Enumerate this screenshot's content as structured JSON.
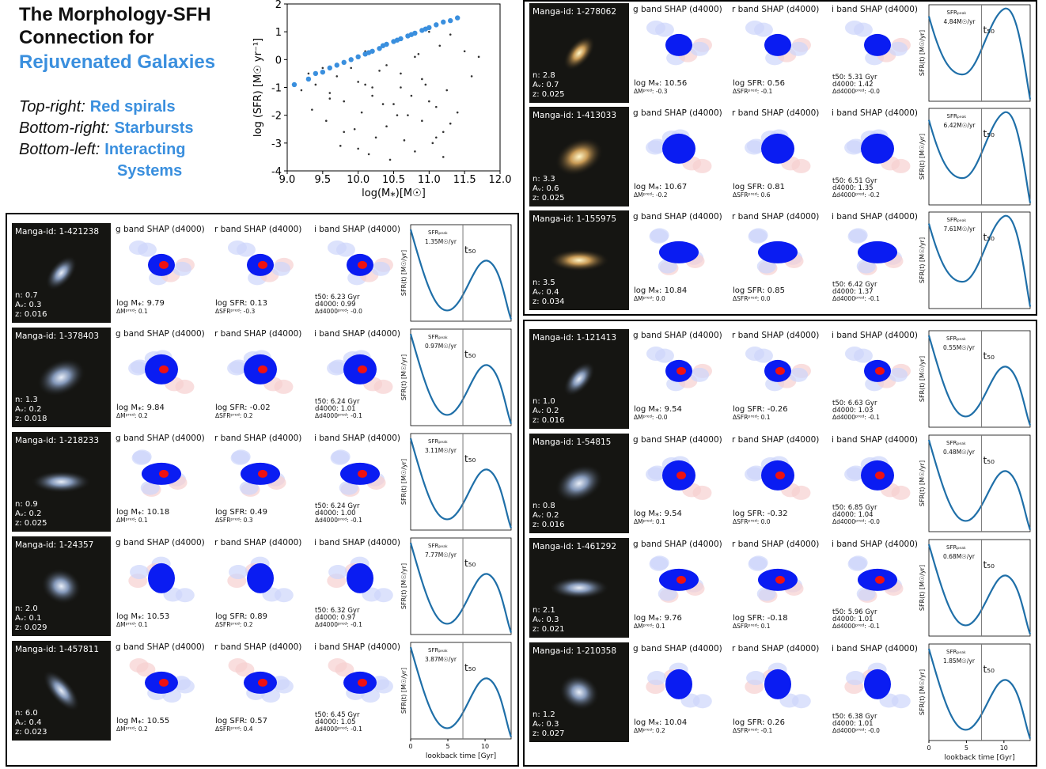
{
  "header": {
    "title": [
      "The Morphology-SFH",
      "Connection for"
    ],
    "subtitle": "Rejuvenated Galaxies",
    "legend": [
      {
        "prefix": "Top-right:",
        "label": [
          "Red spirals"
        ]
      },
      {
        "prefix": "Bottom-right:",
        "label": [
          "Starbursts"
        ]
      },
      {
        "prefix": "Bottom-left:",
        "label": [
          "Interacting",
          "Systems"
        ]
      }
    ]
  },
  "chart_data": {
    "type": "scatter",
    "xlabel": "log(M⁎)[M☉]",
    "ylabel": "log (SFR) [M☉ yr⁻¹]",
    "xlim": [
      9.0,
      12.0
    ],
    "xticks": [
      {
        "value": 9,
        "label": "9.0"
      },
      9.5,
      {
        "value": 10,
        "label": "10.0"
      },
      10.5,
      {
        "value": 11,
        "label": "11.0"
      },
      11.5,
      {
        "value": 12,
        "label": "12.0"
      }
    ],
    "ylim": [
      -4,
      2
    ],
    "yticks": [
      -4,
      -3,
      -2,
      -1,
      0,
      1,
      2
    ],
    "series": [
      {
        "color": "#333333",
        "x": [
          9.2,
          9.3,
          9.35,
          9.4,
          9.5,
          9.55,
          9.6,
          9.7,
          9.75,
          9.8,
          9.9,
          9.95,
          10.0,
          10.05,
          10.1,
          10.15,
          10.2,
          10.25,
          10.3,
          10.35,
          10.4,
          10.45,
          10.5,
          10.55,
          10.6,
          10.65,
          10.7,
          10.75,
          10.8,
          10.85,
          10.9,
          10.95,
          11.0,
          11.05,
          11.1,
          11.15,
          11.2,
          11.25,
          11.3,
          11.4,
          11.5,
          11.6,
          11.7,
          9.6,
          9.9,
          10.2,
          10.4,
          10.6,
          10.8,
          11.0,
          11.2,
          10.0,
          10.3,
          10.7,
          10.9,
          11.1,
          9.8,
          10.5,
          11.3,
          10.1
        ],
        "values": [
          -1.1,
          -0.5,
          -1.8,
          -0.9,
          -0.3,
          -2.2,
          -1.2,
          -0.6,
          -3.1,
          -1.5,
          0.0,
          -2.5,
          -0.8,
          -1.9,
          0.3,
          -3.4,
          -1.0,
          -2.8,
          0.4,
          -1.6,
          -0.2,
          -3.6,
          0.6,
          -2.0,
          -0.5,
          -2.9,
          0.8,
          -1.3,
          -3.3,
          0.2,
          -2.2,
          -0.9,
          1.0,
          -3.0,
          -1.7,
          0.5,
          -2.6,
          -1.1,
          0.9,
          -1.9,
          0.3,
          -0.6,
          0.1,
          -1.4,
          -0.3,
          -1.3,
          -2.4,
          -1.0,
          0.1,
          -1.5,
          -3.5,
          -3.2,
          -0.4,
          -2.0,
          -0.7,
          -2.8,
          -2.6,
          -1.6,
          -2.3,
          -0.9
        ]
      },
      {
        "color": "#3a8fde",
        "x": [
          9.1,
          9.3,
          9.4,
          9.5,
          9.6,
          9.7,
          9.8,
          9.9,
          10.0,
          10.1,
          10.15,
          10.2,
          10.3,
          10.35,
          10.4,
          10.5,
          10.55,
          10.6,
          10.7,
          10.75,
          10.8,
          10.9,
          10.95,
          11.0,
          11.1,
          11.2,
          11.3,
          11.4
        ],
        "values": [
          -0.9,
          -0.7,
          -0.5,
          -0.45,
          -0.3,
          -0.2,
          -0.1,
          0.0,
          0.1,
          0.2,
          0.25,
          0.3,
          0.4,
          0.5,
          0.55,
          0.65,
          0.7,
          0.75,
          0.85,
          0.9,
          0.95,
          1.05,
          1.1,
          1.15,
          1.25,
          1.35,
          1.4,
          1.5
        ]
      }
    ]
  },
  "columns": [
    "g band SHAP (d4000)",
    "r band SHAP (d4000)",
    "i band SHAP (d4000)"
  ],
  "peak_label": "SFRₚₑₐₖ",
  "t50_label": "t₅₀",
  "sfh_ylabel": "SFR(t) [M☉/yr]",
  "panels": [
    {
      "xlim": [
        0,
        13.5
      ],
      "xticks": [
        0,
        5,
        10
      ],
      "xlabel": "lookback time [Gyr]",
      "rows": [
        {
          "id": "Manga-id: 1-421238",
          "info": [
            "n: 0.7",
            "Aᵥ: 0.3",
            "z: 0.016"
          ],
          "mass": [
            "log M⁎: 9.79",
            "ΔMᵖʳᵉᵈ: 0.1"
          ],
          "sfr": [
            "log SFR: 0.13",
            "ΔSFRᵖʳᵉᵈ: -0.3"
          ],
          "age": [
            "t50: 6.23 Gyr",
            "d4000: 0.99",
            "Δd4000ᵖʳᵉᵈ: -0.0"
          ],
          "peak": "1.35M☉/yr"
        },
        {
          "id": "Manga-id: 1-378403",
          "info": [
            "n: 1.3",
            "Aᵥ: 0.2",
            "z: 0.018"
          ],
          "mass": [
            "log M⁎: 9.84",
            "ΔMᵖʳᵉᵈ: 0.2"
          ],
          "sfr": [
            "log SFR: -0.02",
            "ΔSFRᵖʳᵉᵈ: 0.2"
          ],
          "age": [
            "t50: 6.24 Gyr",
            "d4000: 1.01",
            "Δd4000ᵖʳᵉᵈ: -0.1"
          ],
          "peak": "0.97M☉/yr"
        },
        {
          "id": "Manga-id: 1-218233",
          "info": [
            "n: 0.9",
            "Aᵥ: 0.2",
            "z: 0.025"
          ],
          "mass": [
            "log M⁎: 10.18",
            "ΔMᵖʳᵉᵈ: 0.1"
          ],
          "sfr": [
            "log SFR: 0.49",
            "ΔSFRᵖʳᵉᵈ: 0.3"
          ],
          "age": [
            "t50: 6.24 Gyr",
            "d4000: 1.00",
            "Δd4000ᵖʳᵉᵈ: -0.1"
          ],
          "peak": "3.11M☉/yr"
        },
        {
          "id": "Manga-id: 1-24357",
          "info": [
            "n: 2.0",
            "Aᵥ: 0.1",
            "z: 0.029"
          ],
          "mass": [
            "log M⁎: 10.53",
            "ΔMᵖʳᵉᵈ: 0.1"
          ],
          "sfr": [
            "log SFR: 0.89",
            "ΔSFRᵖʳᵉᵈ: 0.2"
          ],
          "age": [
            "t50: 6.32 Gyr",
            "d4000: 0.97",
            "Δd4000ᵖʳᵉᵈ: -0.1"
          ],
          "peak": "7.77M☉/yr"
        },
        {
          "id": "Manga-id: 1-457811",
          "info": [
            "n: 6.0",
            "Aᵥ: 0.4",
            "z: 0.023"
          ],
          "mass": [
            "log M⁎: 10.55",
            "ΔMᵖʳᵉᵈ: 0.2"
          ],
          "sfr": [
            "log SFR: 0.57",
            "ΔSFRᵖʳᵉᵈ: 0.4"
          ],
          "age": [
            "t50: 6.45 Gyr",
            "d4000: 1.05",
            "Δd4000ᵖʳᵉᵈ: -0.1"
          ],
          "peak": "3.87M☉/yr"
        }
      ]
    },
    {
      "rows": [
        {
          "id": "Manga-id: 1-278062",
          "info": [
            "n: 2.8",
            "Aᵥ: 0.7",
            "z: 0.025"
          ],
          "mass": [
            "log M⁎: 10.56",
            "ΔMᵖʳᵉᵈ: -0.3"
          ],
          "sfr": [
            "log SFR: 0.56",
            "ΔSFRᵖʳᵉᵈ: -0.1"
          ],
          "age": [
            "t50: 5.31 Gyr",
            "d4000: 1.42",
            "Δd4000ᵖʳᵉᵈ: -0.0"
          ],
          "peak": "4.84M☉/yr"
        },
        {
          "id": "Manga-id: 1-413033",
          "info": [
            "n: 3.3",
            "Aᵥ: 0.6",
            "z: 0.025"
          ],
          "mass": [
            "log M⁎: 10.67",
            "ΔMᵖʳᵉᵈ: -0.2"
          ],
          "sfr": [
            "log SFR: 0.81",
            "ΔSFRᵖʳᵉᵈ: 0.6"
          ],
          "age": [
            "t50: 6.51 Gyr",
            "d4000: 1.35",
            "Δd4000ᵖʳᵉᵈ: -0.2"
          ],
          "peak": "6.42M☉/yr"
        },
        {
          "id": "Manga-id: 1-155975",
          "info": [
            "n: 3.5",
            "Aᵥ: 0.4",
            "z: 0.034"
          ],
          "mass": [
            "log M⁎: 10.84",
            "ΔMᵖʳᵉᵈ: 0.0"
          ],
          "sfr": [
            "log SFR: 0.85",
            "ΔSFRᵖʳᵉᵈ: 0.0"
          ],
          "age": [
            "t50: 6.42 Gyr",
            "d4000: 1.37",
            "Δd4000ᵖʳᵉᵈ: -0.1"
          ],
          "peak": "7.61M☉/yr"
        }
      ]
    },
    {
      "xlim": [
        0,
        13.5
      ],
      "xticks": [
        0,
        5,
        10
      ],
      "xlabel": "lookback time [Gyr]",
      "rows": [
        {
          "id": "Manga-id: 1-121413",
          "info": [
            "n: 1.0",
            "Aᵥ: 0.2",
            "z: 0.016"
          ],
          "mass": [
            "log M⁎: 9.54",
            "ΔMᵖʳᵉᵈ: -0.0"
          ],
          "sfr": [
            "log SFR: -0.26",
            "ΔSFRᵖʳᵉᵈ: 0.1"
          ],
          "age": [
            "t50: 6.63 Gyr",
            "d4000: 1.03",
            "Δd4000ᵖʳᵉᵈ: -0.1"
          ],
          "peak": "0.55M☉/yr"
        },
        {
          "id": "Manga-id: 1-54815",
          "info": [
            "n: 0.8",
            "Aᵥ: 0.2",
            "z: 0.016"
          ],
          "mass": [
            "log M⁎: 9.54",
            "ΔMᵖʳᵉᵈ: 0.1"
          ],
          "sfr": [
            "log SFR: -0.32",
            "ΔSFRᵖʳᵉᵈ: 0.0"
          ],
          "age": [
            "t50: 6.85 Gyr",
            "d4000: 1.04",
            "Δd4000ᵖʳᵉᵈ: -0.0"
          ],
          "peak": "0.48M☉/yr"
        },
        {
          "id": "Manga-id: 1-461292",
          "info": [
            "n: 2.1",
            "Aᵥ: 0.3",
            "z: 0.021"
          ],
          "mass": [
            "log M⁎: 9.76",
            "ΔMᵖʳᵉᵈ: 0.1"
          ],
          "sfr": [
            "log SFR: -0.18",
            "ΔSFRᵖʳᵉᵈ: 0.1"
          ],
          "age": [
            "t50: 5.96 Gyr",
            "d4000: 1.01",
            "Δd4000ᵖʳᵉᵈ: -0.1"
          ],
          "peak": "0.68M☉/yr"
        },
        {
          "id": "Manga-id: 1-210358",
          "info": [
            "n: 1.2",
            "Aᵥ: 0.3",
            "z: 0.027"
          ],
          "mass": [
            "log M⁎: 10.04",
            "ΔMᵖʳᵉᵈ: 0.2"
          ],
          "sfr": [
            "log SFR: 0.26",
            "ΔSFRᵖʳᵉᵈ: -0.1"
          ],
          "age": [
            "t50: 6.38 Gyr",
            "d4000: 1.01",
            "Δd4000ᵖʳᵉᵈ: -0.0"
          ],
          "peak": "1.85M☉/yr"
        }
      ]
    }
  ]
}
